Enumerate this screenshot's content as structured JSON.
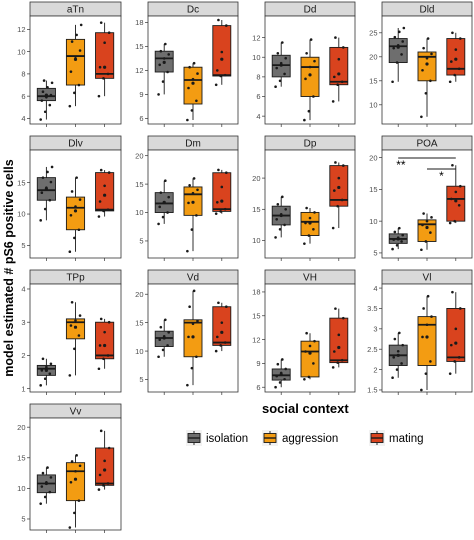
{
  "chart_data": {
    "type": "box",
    "ylabel": "model estimated # pS6 positive cells",
    "legend": {
      "title": "social context",
      "placement": "bottom-right",
      "entries": [
        {
          "name": "isolation",
          "color": "#6e6e6e"
        },
        {
          "name": "aggression",
          "color": "#f39c12"
        },
        {
          "name": "mating",
          "color": "#d9431e"
        }
      ]
    },
    "groups": [
      "isolation",
      "aggression",
      "mating"
    ],
    "colors": {
      "isolation": "#6e6e6e",
      "aggression": "#f39c12",
      "mating": "#d9431e"
    },
    "panels": [
      {
        "title": "aTn",
        "ylim": [
          3.5,
          13.2
        ],
        "yticks": [
          4,
          6,
          8,
          10,
          12
        ],
        "boxes": [
          {
            "group": "isolation",
            "min": 3.9,
            "q1": 5.6,
            "median": 6.0,
            "q3": 6.7,
            "max": 7.4,
            "mean": 6.1,
            "points": [
              3.9,
              4.6,
              5.2,
              5.6,
              5.9,
              6.1,
              6.4,
              6.8,
              7.2,
              7.4
            ]
          },
          {
            "group": "aggression",
            "min": 5.1,
            "q1": 7.0,
            "median": 9.6,
            "q3": 11.1,
            "max": 12.4,
            "mean": 9.3,
            "points": [
              5.1,
              6.3,
              7.0,
              8.2,
              9.4,
              10.1,
              10.9,
              11.5,
              12.4
            ]
          },
          {
            "group": "mating",
            "min": 6.0,
            "q1": 7.6,
            "median": 8.0,
            "q3": 11.7,
            "max": 12.6,
            "mean": 8.6,
            "points": [
              6.0,
              7.6,
              8.0,
              8.6,
              10.8,
              11.7,
              12.6
            ]
          }
        ]
      },
      {
        "title": "Dc",
        "ylim": [
          5.3,
          18.8
        ],
        "yticks": [
          6,
          9,
          12,
          15,
          18
        ],
        "boxes": [
          {
            "group": "isolation",
            "min": 9.0,
            "q1": 11.8,
            "median": 13.5,
            "q3": 14.4,
            "max": 15.3,
            "mean": 13.0,
            "points": [
              9.0,
              10.6,
              11.8,
              12.7,
              13.5,
              14.0,
              14.4,
              15.3
            ]
          },
          {
            "group": "aggression",
            "min": 5.8,
            "q1": 7.8,
            "median": 10.8,
            "q3": 12.4,
            "max": 12.9,
            "mean": 10.4,
            "points": [
              5.8,
              7.0,
              8.2,
              9.8,
              10.9,
              11.6,
              12.4,
              12.9
            ]
          },
          {
            "group": "mating",
            "min": 10.2,
            "q1": 11.3,
            "median": 11.4,
            "q3": 17.6,
            "max": 18.3,
            "mean": 13.4,
            "points": [
              10.2,
              11.3,
              11.4,
              12.0,
              14.3,
              17.6,
              18.3
            ]
          }
        ]
      },
      {
        "title": "Dd",
        "ylim": [
          3.2,
          14.2
        ],
        "yticks": [
          4,
          6,
          8,
          10,
          12
        ],
        "boxes": [
          {
            "group": "isolation",
            "min": 7.0,
            "q1": 8.0,
            "median": 9.2,
            "q3": 10.2,
            "max": 11.5,
            "mean": 9.2,
            "points": [
              7.0,
              7.6,
              8.3,
              8.9,
              9.4,
              9.9,
              10.4,
              11.5
            ]
          },
          {
            "group": "aggression",
            "min": 3.6,
            "q1": 6.0,
            "median": 9.0,
            "q3": 10.0,
            "max": 11.8,
            "mean": 8.2,
            "points": [
              3.6,
              4.5,
              6.0,
              7.8,
              9.0,
              9.6,
              10.4,
              11.8
            ]
          },
          {
            "group": "mating",
            "min": 5.5,
            "q1": 7.2,
            "median": 7.5,
            "q3": 11.0,
            "max": 12.0,
            "mean": 8.3,
            "points": [
              5.5,
              7.2,
              7.5,
              8.0,
              9.8,
              11.0,
              12.0
            ]
          }
        ]
      },
      {
        "title": "Dld",
        "ylim": [
          6.0,
          28.5
        ],
        "yticks": [
          10,
          15,
          20,
          25
        ],
        "boxes": [
          {
            "group": "isolation",
            "min": 14.8,
            "q1": 18.8,
            "median": 22.2,
            "q3": 23.8,
            "max": 26.0,
            "mean": 22.0,
            "points": [
              14.8,
              18.8,
              20.5,
              21.8,
              22.4,
              23.2,
              24.1,
              25.2,
              26.0
            ]
          },
          {
            "group": "aggression",
            "min": 7.5,
            "q1": 15.0,
            "median": 20.0,
            "q3": 21.0,
            "max": 23.8,
            "mean": 18.5,
            "points": [
              7.5,
              12.4,
              15.0,
              17.2,
              19.7,
              20.6,
              21.8,
              23.8
            ]
          },
          {
            "group": "mating",
            "min": 14.8,
            "q1": 16.2,
            "median": 17.5,
            "q3": 23.8,
            "max": 25.0,
            "mean": 19.5,
            "points": [
              14.8,
              16.2,
              17.5,
              19.0,
              21.5,
              23.8,
              25.0
            ]
          }
        ]
      },
      {
        "title": "Dlv",
        "ylim": [
          3.0,
          20.2
        ],
        "yticks": [
          5,
          10,
          15
        ],
        "boxes": [
          {
            "group": "isolation",
            "min": 9.0,
            "q1": 12.2,
            "median": 13.8,
            "q3": 15.8,
            "max": 17.5,
            "mean": 14.0,
            "points": [
              9.0,
              10.8,
              12.2,
              13.4,
              14.2,
              15.1,
              15.8,
              16.7,
              17.5
            ]
          },
          {
            "group": "aggression",
            "min": 4.0,
            "q1": 7.5,
            "median": 11.0,
            "q3": 12.7,
            "max": 15.8,
            "mean": 10.5,
            "points": [
              4.0,
              6.2,
              7.5,
              9.8,
              11.2,
              12.3,
              13.6,
              15.8
            ]
          },
          {
            "group": "mating",
            "min": 9.6,
            "q1": 10.5,
            "median": 10.7,
            "q3": 16.6,
            "max": 17.0,
            "mean": 13.0,
            "points": [
              9.6,
              10.5,
              10.7,
              12.0,
              14.5,
              16.6,
              17.0
            ]
          }
        ]
      },
      {
        "title": "Dm",
        "ylim": [
          2.0,
          21.0
        ],
        "yticks": [
          5,
          10,
          15,
          20
        ],
        "boxes": [
          {
            "group": "isolation",
            "min": 8.0,
            "q1": 10.0,
            "median": 11.6,
            "q3": 13.5,
            "max": 15.6,
            "mean": 11.8,
            "points": [
              8.0,
              9.2,
              10.0,
              11.0,
              11.8,
              12.7,
              13.5,
              15.6
            ]
          },
          {
            "group": "aggression",
            "min": 3.2,
            "q1": 9.5,
            "median": 13.2,
            "q3": 14.5,
            "max": 16.0,
            "mean": 11.8,
            "points": [
              3.2,
              7.0,
              9.5,
              11.7,
              13.4,
              14.0,
              14.8,
              16.0
            ]
          },
          {
            "group": "mating",
            "min": 9.8,
            "q1": 10.2,
            "median": 10.6,
            "q3": 17.0,
            "max": 17.5,
            "mean": 12.0,
            "points": [
              9.8,
              10.2,
              10.6,
              11.8,
              14.5,
              17.0,
              17.5
            ]
          }
        ]
      },
      {
        "title": "Dp",
        "ylim": [
          7.2,
          24.5
        ],
        "yticks": [
          10,
          15,
          20
        ],
        "boxes": [
          {
            "group": "isolation",
            "min": 10.5,
            "q1": 12.5,
            "median": 14.0,
            "q3": 15.5,
            "max": 17.0,
            "mean": 14.0,
            "points": [
              10.5,
              11.8,
              12.5,
              13.4,
              14.2,
              15.0,
              15.8,
              17.0
            ]
          },
          {
            "group": "aggression",
            "min": 9.5,
            "q1": 10.8,
            "median": 13.0,
            "q3": 14.5,
            "max": 15.2,
            "mean": 12.8,
            "points": [
              9.5,
              10.8,
              11.8,
              12.8,
              13.6,
              14.5,
              15.2
            ]
          },
          {
            "group": "mating",
            "min": 12.0,
            "q1": 15.5,
            "median": 16.5,
            "q3": 22.0,
            "max": 22.5,
            "mean": 18.5,
            "points": [
              12.0,
              15.5,
              16.5,
              18.0,
              20.0,
              22.0,
              22.5
            ]
          }
        ]
      },
      {
        "title": "POA",
        "ylim": [
          4.2,
          21.2
        ],
        "yticks": [
          5,
          10,
          15,
          20
        ],
        "annotations": [
          "**",
          "*"
        ],
        "boxes": [
          {
            "group": "isolation",
            "min": 5.6,
            "q1": 6.5,
            "median": 7.2,
            "q3": 8.0,
            "max": 8.9,
            "mean": 7.2,
            "points": [
              5.6,
              6.2,
              6.8,
              7.1,
              7.4,
              7.8,
              8.3,
              8.9
            ]
          },
          {
            "group": "aggression",
            "min": 5.5,
            "q1": 6.8,
            "median": 9.5,
            "q3": 10.2,
            "max": 11.2,
            "mean": 9.0,
            "points": [
              5.5,
              6.8,
              8.2,
              9.4,
              10.0,
              10.6,
              11.2
            ]
          },
          {
            "group": "mating",
            "min": 9.7,
            "q1": 10.0,
            "median": 13.5,
            "q3": 15.5,
            "max": 18.8,
            "mean": 13.2,
            "points": [
              9.7,
              10.0,
              12.5,
              13.5,
              14.6,
              15.5,
              18.8
            ]
          }
        ]
      },
      {
        "title": "TPp",
        "ylim": [
          0.9,
          4.15
        ],
        "yticks": [
          1,
          2,
          3,
          4
        ],
        "boxes": [
          {
            "group": "isolation",
            "min": 1.1,
            "q1": 1.4,
            "median": 1.6,
            "q3": 1.7,
            "max": 1.9,
            "mean": 1.55,
            "points": [
              1.1,
              1.3,
              1.45,
              1.55,
              1.65,
              1.75,
              1.9
            ]
          },
          {
            "group": "aggression",
            "min": 1.4,
            "q1": 2.5,
            "median": 3.0,
            "q3": 3.1,
            "max": 3.6,
            "mean": 2.85,
            "points": [
              1.4,
              2.2,
              2.6,
              2.9,
              3.05,
              3.2,
              3.6
            ]
          },
          {
            "group": "mating",
            "min": 1.6,
            "q1": 1.9,
            "median": 2.0,
            "q3": 3.0,
            "max": 3.1,
            "mean": 2.3,
            "points": [
              1.6,
              1.9,
              2.0,
              2.3,
              2.7,
              3.0,
              3.1
            ]
          }
        ]
      },
      {
        "title": "Vd",
        "ylim": [
          2.8,
          21.8
        ],
        "yticks": [
          5,
          10,
          15,
          20
        ],
        "boxes": [
          {
            "group": "isolation",
            "min": 9.0,
            "q1": 10.8,
            "median": 12.3,
            "q3": 13.5,
            "max": 15.5,
            "mean": 12.3,
            "points": [
              9.0,
              10.2,
              11.0,
              12.0,
              12.6,
              13.3,
              14.2,
              15.5
            ]
          },
          {
            "group": "aggression",
            "min": 4.0,
            "q1": 9.0,
            "median": 15.0,
            "q3": 15.5,
            "max": 20.6,
            "mean": 12.5,
            "points": [
              4.0,
              7.0,
              9.0,
              12.5,
              14.8,
              15.3,
              17.8,
              20.6
            ]
          },
          {
            "group": "mating",
            "min": 10.0,
            "q1": 11.0,
            "median": 11.5,
            "q3": 17.8,
            "max": 18.5,
            "mean": 13.3,
            "points": [
              10.0,
              11.0,
              11.5,
              12.5,
              15.0,
              17.8,
              18.5
            ]
          }
        ]
      },
      {
        "title": "VH",
        "ylim": [
          5.4,
          19.0
        ],
        "yticks": [
          6,
          9,
          12,
          15,
          18
        ],
        "boxes": [
          {
            "group": "isolation",
            "min": 6.0,
            "q1": 6.9,
            "median": 7.5,
            "q3": 8.3,
            "max": 9.5,
            "mean": 7.6,
            "points": [
              6.0,
              6.6,
              7.0,
              7.4,
              7.8,
              8.3,
              8.9,
              9.5
            ]
          },
          {
            "group": "aggression",
            "min": 7.0,
            "q1": 7.3,
            "median": 10.5,
            "q3": 11.8,
            "max": 12.8,
            "mean": 10.3,
            "points": [
              7.0,
              7.3,
              9.0,
              10.5,
              11.2,
              11.8,
              12.8
            ]
          },
          {
            "group": "mating",
            "min": 8.5,
            "q1": 9.1,
            "median": 9.4,
            "q3": 14.7,
            "max": 15.9,
            "mean": 11.0,
            "points": [
              8.5,
              9.1,
              9.4,
              10.5,
              12.6,
              14.7,
              15.9
            ]
          }
        ]
      },
      {
        "title": "Vl",
        "ylim": [
          1.45,
          4.1
        ],
        "yticks": [
          1.5,
          2.0,
          2.5,
          3.0,
          3.5,
          4.0
        ],
        "boxes": [
          {
            "group": "isolation",
            "min": 1.8,
            "q1": 2.1,
            "median": 2.35,
            "q3": 2.6,
            "max": 2.9,
            "mean": 2.35,
            "points": [
              1.8,
              2.0,
              2.15,
              2.3,
              2.45,
              2.6,
              2.75,
              2.9
            ]
          },
          {
            "group": "aggression",
            "min": 1.5,
            "q1": 2.1,
            "median": 3.1,
            "q3": 3.3,
            "max": 3.8,
            "mean": 2.8,
            "points": [
              1.5,
              1.9,
              2.2,
              2.8,
              3.1,
              3.3,
              3.5,
              3.8
            ]
          },
          {
            "group": "mating",
            "min": 1.9,
            "q1": 2.2,
            "median": 2.3,
            "q3": 3.5,
            "max": 3.9,
            "mean": 2.65,
            "points": [
              1.9,
              2.2,
              2.3,
              2.6,
              3.0,
              3.5,
              3.9
            ]
          }
        ]
      },
      {
        "title": "Vv",
        "ylim": [
          3.2,
          21.5
        ],
        "yticks": [
          5,
          10,
          15,
          20
        ],
        "boxes": [
          {
            "group": "isolation",
            "min": 7.5,
            "q1": 9.3,
            "median": 10.8,
            "q3": 12.2,
            "max": 13.4,
            "mean": 10.8,
            "points": [
              7.5,
              8.6,
              9.4,
              10.3,
              11.0,
              11.8,
              12.5,
              13.4
            ]
          },
          {
            "group": "aggression",
            "min": 3.6,
            "q1": 8.0,
            "median": 12.8,
            "q3": 14.2,
            "max": 15.4,
            "mean": 11.5,
            "points": [
              3.6,
              6.0,
              8.0,
              11.0,
              12.8,
              13.7,
              14.4,
              15.4
            ]
          },
          {
            "group": "mating",
            "min": 9.8,
            "q1": 10.5,
            "median": 10.8,
            "q3": 16.6,
            "max": 19.4,
            "mean": 13.0,
            "points": [
              9.8,
              10.5,
              10.8,
              12.2,
              14.5,
              16.6,
              19.4
            ]
          }
        ]
      }
    ]
  }
}
